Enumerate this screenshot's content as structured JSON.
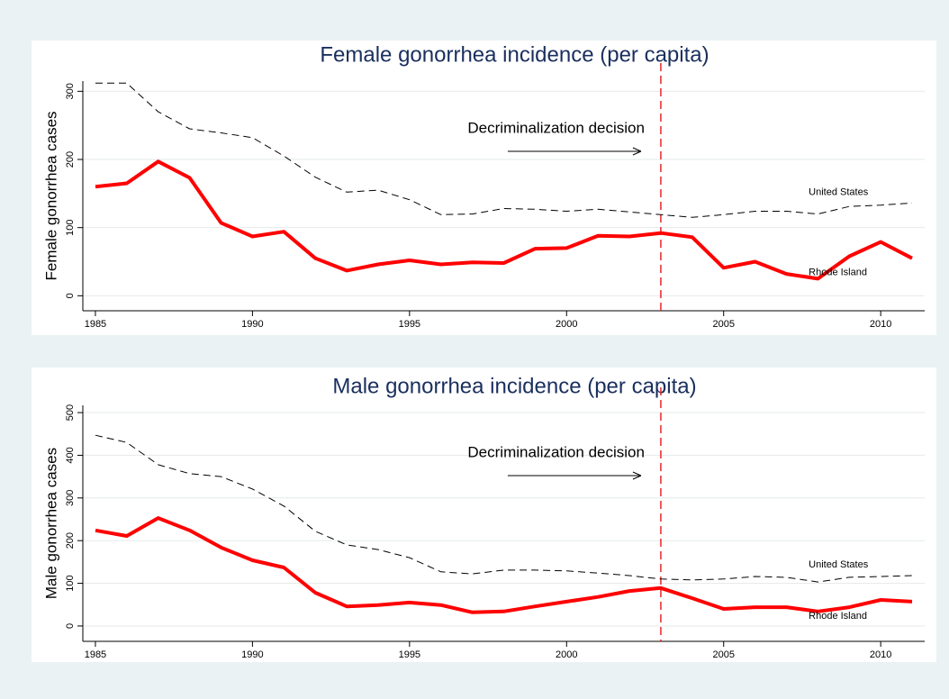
{
  "chart_data": [
    {
      "type": "line",
      "title": "Female gonorrhea incidence (per capita)",
      "ylabel": "Female gonorrhea cases",
      "annotation": "Decriminalization decision",
      "vline": 2003,
      "vline_color": "#e8262b",
      "x": [
        1985,
        1986,
        1987,
        1988,
        1989,
        1990,
        1991,
        1992,
        1993,
        1994,
        1995,
        1996,
        1997,
        1998,
        1999,
        2000,
        2001,
        2002,
        2003,
        2004,
        2005,
        2006,
        2007,
        2008,
        2009,
        2010,
        2011
      ],
      "series": [
        {
          "name": "United States",
          "color": "#000000",
          "dashed": true,
          "values": [
            312,
            312,
            270,
            245,
            239,
            232,
            205,
            174,
            152,
            155,
            141,
            119,
            120,
            128,
            127,
            124,
            127,
            123,
            119,
            115,
            119,
            124,
            124,
            120,
            131,
            133,
            136
          ]
        },
        {
          "name": "Rhode Island",
          "color": "#ff0000",
          "dashed": false,
          "values": [
            160,
            165,
            197,
            173,
            107,
            87,
            94,
            55,
            37,
            46,
            52,
            46,
            49,
            48,
            69,
            70,
            88,
            87,
            92,
            86,
            41,
            50,
            32,
            25,
            58,
            79,
            55
          ]
        }
      ],
      "xlim": [
        1984.6,
        2011.4
      ],
      "xticks": [
        1985,
        1990,
        1995,
        2000,
        2005,
        2010
      ],
      "ylim": [
        -22,
        315
      ],
      "yticks": [
        0,
        100,
        200,
        300
      ],
      "grid": true
    },
    {
      "type": "line",
      "title": "Male gonorrhea incidence (per capita)",
      "ylabel": "Male gonorrhea cases",
      "annotation": "Decriminalization decision",
      "vline": 2003,
      "vline_color": "#e8262b",
      "x": [
        1985,
        1986,
        1987,
        1988,
        1989,
        1990,
        1991,
        1992,
        1993,
        1994,
        1995,
        1996,
        1997,
        1998,
        1999,
        2000,
        2001,
        2002,
        2003,
        2004,
        2005,
        2006,
        2007,
        2008,
        2009,
        2010,
        2011
      ],
      "series": [
        {
          "name": "United States",
          "color": "#000000",
          "dashed": true,
          "values": [
            447,
            430,
            378,
            357,
            350,
            321,
            281,
            222,
            190,
            179,
            160,
            127,
            122,
            131,
            131,
            129,
            124,
            118,
            110,
            108,
            110,
            116,
            114,
            103,
            114,
            116,
            118
          ]
        },
        {
          "name": "Rhode Island",
          "color": "#ff0000",
          "dashed": false,
          "values": [
            224,
            211,
            253,
            224,
            184,
            154,
            137,
            78,
            46,
            49,
            55,
            49,
            32,
            34,
            46,
            57,
            68,
            82,
            89,
            65,
            40,
            44,
            44,
            34,
            44,
            61,
            57
          ]
        }
      ],
      "xlim": [
        1984.6,
        2011.4
      ],
      "xticks": [
        1985,
        1990,
        1995,
        2000,
        2005,
        2010
      ],
      "ylim": [
        -36,
        517
      ],
      "yticks": [
        0,
        100,
        200,
        300,
        400,
        500
      ],
      "grid": true
    }
  ]
}
